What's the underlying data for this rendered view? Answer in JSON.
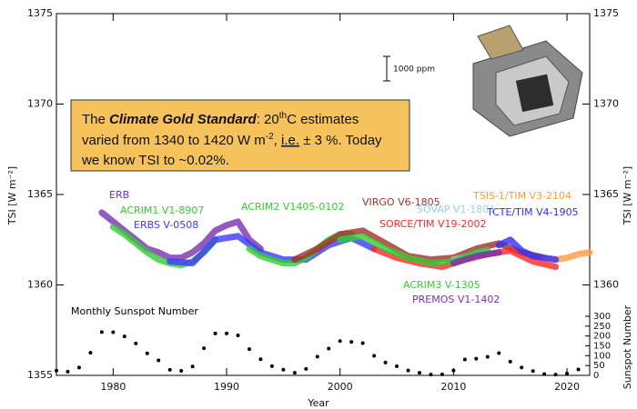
{
  "chart_data": {
    "type": "line",
    "x_label": "Year",
    "y_label": "TSI [W m⁻²]",
    "y2_label": "Sunspot Number",
    "xlim": [
      1975,
      2022
    ],
    "xticks": [
      1980,
      1990,
      2000,
      2010,
      2020
    ],
    "ylim": [
      1355,
      1375
    ],
    "yticks": [
      1355,
      1360,
      1365,
      1370,
      1375
    ],
    "y2lim": [
      0,
      1837
    ],
    "y2ticks": [
      0,
      50,
      100,
      150,
      200,
      250,
      300
    ],
    "note": [
      [
        "The ",
        "Climate Gold Standard",
        ": 20",
        "th",
        "C estimates"
      ],
      [
        "varied  from 1340 to 1420 W m",
        "-2",
        ", ",
        "i.e.",
        " ± 3 %.  Today"
      ],
      [
        "we know TSI to ~0.02%."
      ]
    ],
    "scale_label": "1000 ppm",
    "series": [
      {
        "name": "ERB",
        "color": "#7a2fb0",
        "x": [
          1979,
          1980,
          1981,
          1982,
          1983,
          1984,
          1985,
          1986,
          1987,
          1988,
          1989,
          1990,
          1991,
          1992,
          1993
        ],
        "values": [
          1364,
          1363.5,
          1363,
          1362.5,
          1362,
          1361.8,
          1361.5,
          1361.5,
          1361.8,
          1362.3,
          1363,
          1363.3,
          1363.5,
          1362.5,
          1362
        ]
      },
      {
        "name": "ACRIM1 V1-8907",
        "color": "#33cc33",
        "x": [
          1980,
          1981,
          1982,
          1983,
          1984,
          1985,
          1986,
          1987,
          1988,
          1989
        ],
        "values": [
          1363.2,
          1362.8,
          1362.3,
          1361.8,
          1361.4,
          1361.2,
          1361.1,
          1361.3,
          1361.8,
          1362.5
        ]
      },
      {
        "name": "ERBS V-0508",
        "color": "#3a3aff",
        "x": [
          1985,
          1987,
          1989,
          1991,
          1993,
          1995,
          1997,
          1999,
          2001,
          2003
        ],
        "values": [
          1361.3,
          1361.2,
          1362.5,
          1362.7,
          1361.8,
          1361.4,
          1361.4,
          1362.2,
          1362.6,
          1362
        ]
      },
      {
        "name": "ACRIM2 V1405-0102",
        "color": "#33cc33",
        "x": [
          1992,
          1993,
          1994,
          1995,
          1996,
          1997,
          1998,
          1999,
          2000,
          2001
        ],
        "values": [
          1362,
          1361.6,
          1361.4,
          1361.2,
          1361.2,
          1361.5,
          1362,
          1362.5,
          1362.8,
          1362.8
        ]
      },
      {
        "name": "VIRGO V6-1805",
        "color": "#a3302a",
        "x": [
          1996,
          1998,
          2000,
          2002,
          2004,
          2006,
          2008,
          2010,
          2012,
          2014,
          2016,
          2018
        ],
        "values": [
          1361.4,
          1362,
          1362.8,
          1363,
          1362.3,
          1361.6,
          1361.4,
          1361.5,
          1362,
          1362.3,
          1361.8,
          1361.5
        ]
      },
      {
        "name": "SOVAP V1-1801",
        "color": "#9ccdf5",
        "x": [
          2010,
          2011.5,
          2013
        ],
        "values": [
          1361.4,
          1361.6,
          1361.9
        ]
      },
      {
        "name": "SORCE/TIM V19-2002",
        "color": "#ff2626",
        "x": [
          2003,
          2005,
          2007,
          2009,
          2011,
          2013,
          2015,
          2017,
          2019
        ],
        "values": [
          1362,
          1361.5,
          1361.2,
          1361,
          1361.4,
          1361.7,
          1361.9,
          1361.3,
          1361
        ]
      },
      {
        "name": "TSIS-1/TIM V3-2104",
        "color": "#ff9a3c",
        "x": [
          2018,
          2019,
          2020,
          2021,
          2022
        ],
        "values": [
          1361.5,
          1361.4,
          1361.5,
          1361.7,
          1361.8
        ]
      },
      {
        "name": "TCTE/TIM V4-1905",
        "color": "#2f2fff",
        "x": [
          2014,
          2015,
          2016,
          2017,
          2018,
          2019
        ],
        "values": [
          1362.2,
          1362.5,
          1361.9,
          1361.6,
          1361.5,
          1361.4
        ]
      },
      {
        "name": "ACRIM3 V-1305",
        "color": "#33cc33",
        "x": [
          2000,
          2002,
          2004,
          2006,
          2008,
          2010,
          2012,
          2013
        ],
        "values": [
          1362.5,
          1362.7,
          1362,
          1361.5,
          1361.2,
          1361.3,
          1361.8,
          1361.9
        ]
      },
      {
        "name": "PREMOS V1-1402",
        "color": "#7a2fb0",
        "x": [
          2010,
          2011,
          2012,
          2013,
          2014
        ],
        "values": [
          1361.2,
          1361.4,
          1361.6,
          1361.7,
          1361.8
        ]
      },
      {
        "name": "Monthly Sunspot Number",
        "color": "#000000",
        "type": "scatter",
        "axis": "y2",
        "x": [
          1975,
          1976,
          1977,
          1978,
          1979,
          1980,
          1981,
          1982,
          1983,
          1984,
          1985,
          1986,
          1987,
          1988,
          1989,
          1990,
          1991,
          1992,
          1993,
          1994,
          1995,
          1996,
          1997,
          1998,
          1999,
          2000,
          2001,
          2002,
          2003,
          2004,
          2005,
          2006,
          2007,
          2008,
          2009,
          2010,
          2011,
          2012,
          2013,
          2014,
          2015,
          2016,
          2017,
          2018,
          2019,
          2020,
          2021
        ],
        "values": [
          24,
          19,
          40,
          115,
          220,
          219,
          198,
          162,
          112,
          76,
          28,
          23,
          45,
          138,
          213,
          213,
          203,
          133,
          82,
          47,
          29,
          13,
          33,
          95,
          136,
          174,
          170,
          164,
          99,
          65,
          46,
          25,
          13,
          4,
          5,
          25,
          81,
          85,
          94,
          113,
          70,
          40,
          22,
          7,
          4,
          9,
          30
        ]
      }
    ]
  }
}
